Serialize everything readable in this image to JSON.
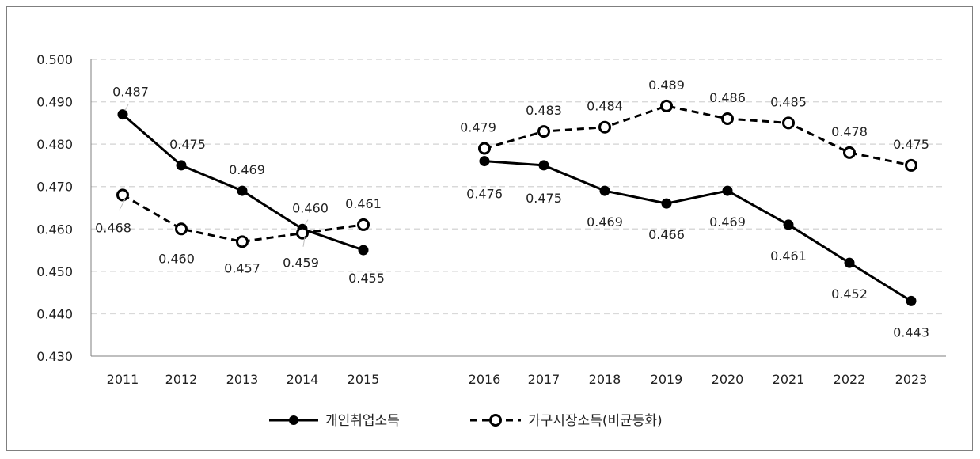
{
  "chart_data": {
    "type": "line",
    "title": "",
    "xlabel": "",
    "ylabel": "",
    "ylim": [
      0.43,
      0.5
    ],
    "yticks": [
      "0.430",
      "0.440",
      "0.450",
      "0.460",
      "0.470",
      "0.480",
      "0.490",
      "0.500"
    ],
    "grid": true,
    "legend_position": "bottom",
    "categories": [
      "2011",
      "2012",
      "2013",
      "2014",
      "2015",
      "2016",
      "2017",
      "2018",
      "2019",
      "2020",
      "2021",
      "2022",
      "2023"
    ],
    "series": [
      {
        "name": "개인취업소득",
        "style": "solid-filled-markers",
        "color": "#000000",
        "values": [
          0.487,
          0.475,
          0.469,
          0.46,
          0.455,
          0.476,
          0.475,
          0.469,
          0.466,
          0.469,
          0.461,
          0.452,
          0.443
        ],
        "labels": [
          "0.487",
          "0.475",
          "0.469",
          "0.460",
          "0.455",
          "0.476",
          "0.475",
          "0.469",
          "0.466",
          "0.469",
          "0.461",
          "0.452",
          "0.443"
        ]
      },
      {
        "name": "가구시장소득(비균등화)",
        "style": "dashed-hollow-markers",
        "color": "#000000",
        "values": [
          0.468,
          0.46,
          0.457,
          0.459,
          0.461,
          0.479,
          0.483,
          0.484,
          0.489,
          0.486,
          0.485,
          0.478,
          0.475
        ],
        "labels": [
          "0.468",
          "0.460",
          "0.457",
          "0.459",
          "0.461",
          "0.479",
          "0.483",
          "0.484",
          "0.489",
          "0.486",
          "0.485",
          "0.478",
          "0.475"
        ]
      }
    ],
    "segments": [
      [
        "2011",
        "2015"
      ],
      [
        "2016",
        "2023"
      ]
    ]
  },
  "colors": {
    "grid": "#d9d9d9",
    "axis": "#7f7f7f",
    "line": "#000000"
  }
}
